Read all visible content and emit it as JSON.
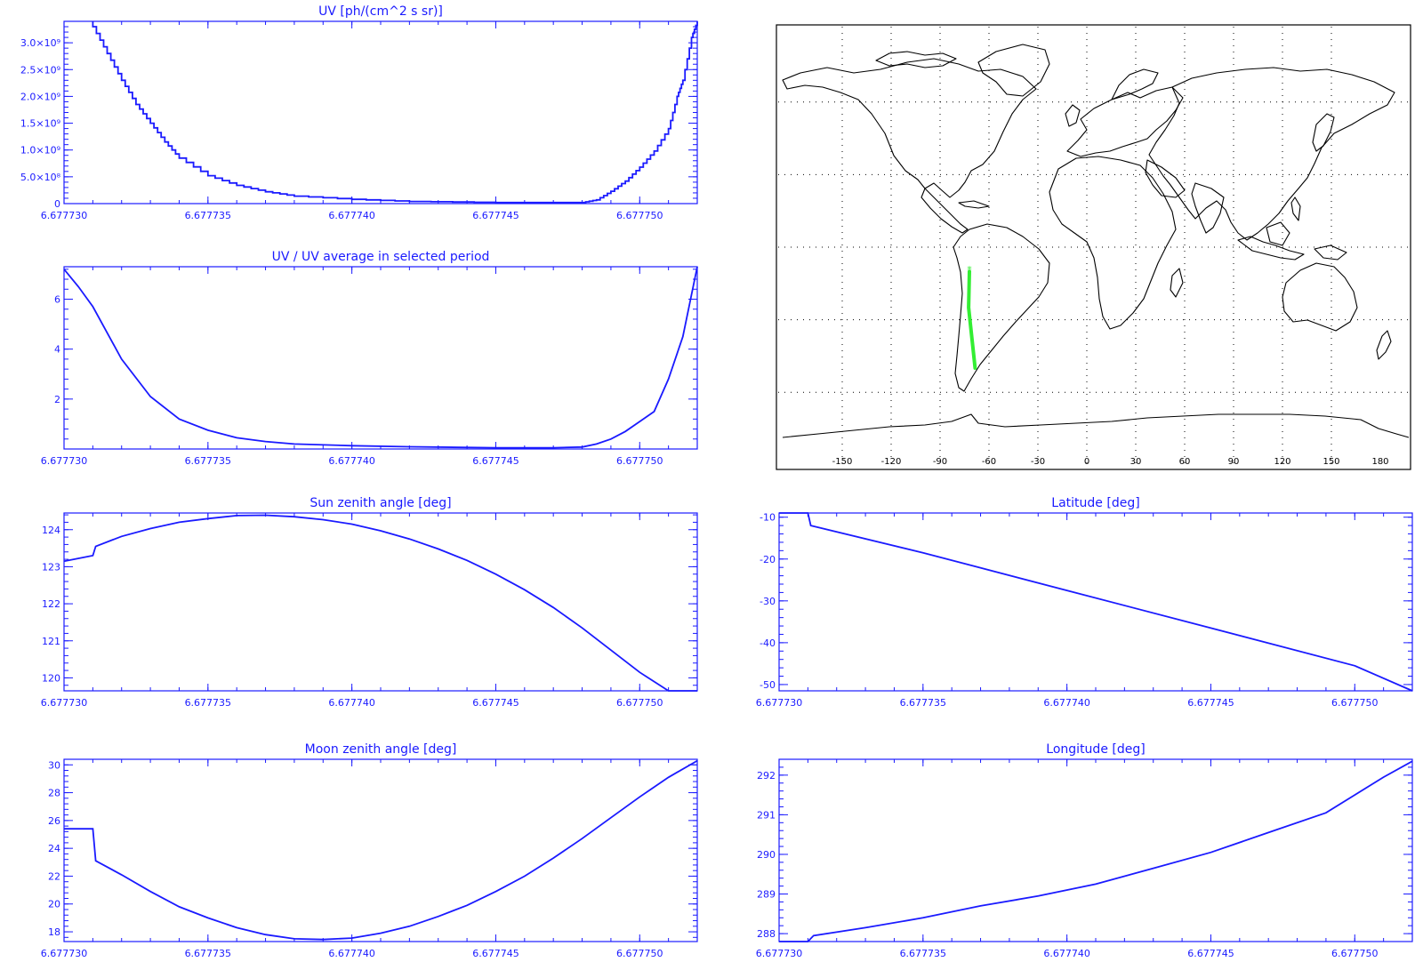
{
  "colors": {
    "axis": "#1a1aff",
    "line": "#1a1aff",
    "map_outline": "#000000",
    "grid_dots": "#000000",
    "track": "#33ee33"
  },
  "x_tick_labels": [
    "6.677730",
    "6.677735",
    "6.677740",
    "6.677745",
    "6.677750"
  ],
  "chart_data": [
    {
      "type": "line",
      "title": "UV [ph/(cm^2 s sr)]",
      "xlim": [
        6.67773,
        6.677752
      ],
      "ylim": [
        0,
        3400000000.0
      ],
      "x_ticks": [
        6.67773,
        6.677735,
        6.67774,
        6.677745,
        6.67775
      ],
      "y_ticks": [
        0,
        500000000.0,
        1000000000.0,
        1500000000.0,
        2000000000.0,
        2500000000.0,
        3000000000.0
      ],
      "y_tick_labels": [
        "0",
        "5.0×10⁸",
        "1.0×10⁹",
        "1.5×10⁹",
        "2.0×10⁹",
        "2.5×10⁹",
        "3.0×10⁹"
      ],
      "step": true,
      "series": [
        {
          "x": [
            6.677731,
            6.677731,
            6.6777315,
            6.677732,
            6.6777325,
            6.677733,
            6.6777335,
            6.677734,
            6.677735,
            6.677736,
            6.677737,
            6.677738,
            6.67774,
            6.677742,
            6.677745,
            6.677747,
            6.677748,
            6.6777485,
            6.677749,
            6.6777495,
            6.67775,
            6.6777505,
            6.677751,
            6.6777513,
            6.6777515,
            6.6777518,
            6.677752
          ],
          "y": [
            3400000000.0,
            3300000000.0,
            2800000000.0,
            2300000000.0,
            1850000000.0,
            1500000000.0,
            1150000000.0,
            850000000.0,
            520000000.0,
            340000000.0,
            220000000.0,
            140000000.0,
            80000000.0,
            40000000.0,
            20000000.0,
            20000000.0,
            20000000.0,
            70000000.0,
            230000000.0,
            420000000.0,
            680000000.0,
            980000000.0,
            1400000000.0,
            2000000000.0,
            2300000000.0,
            3100000000.0,
            3400000000.0
          ]
        }
      ]
    },
    {
      "type": "line",
      "title": "UV / UV average in selected period",
      "xlim": [
        6.67773,
        6.677752
      ],
      "ylim": [
        0,
        7.3
      ],
      "x_ticks": [
        6.67773,
        6.677735,
        6.67774,
        6.677745,
        6.67775
      ],
      "y_ticks": [
        2,
        4,
        6
      ],
      "y_tick_labels": [
        "2",
        "4",
        "6"
      ],
      "series": [
        {
          "x": [
            6.67773,
            6.6777305,
            6.677731,
            6.677732,
            6.677733,
            6.677734,
            6.677735,
            6.677736,
            6.677737,
            6.677738,
            6.67774,
            6.677742,
            6.677745,
            6.677747,
            6.677748,
            6.6777485,
            6.677749,
            6.6777495,
            6.67775,
            6.6777505,
            6.677751,
            6.6777515,
            6.677752
          ],
          "y": [
            7.2,
            6.5,
            5.7,
            3.6,
            2.1,
            1.2,
            0.75,
            0.45,
            0.3,
            0.2,
            0.13,
            0.09,
            0.05,
            0.05,
            0.08,
            0.2,
            0.4,
            0.7,
            1.1,
            1.5,
            2.8,
            4.5,
            7.3
          ]
        }
      ]
    },
    {
      "type": "line",
      "title": "Sun zenith angle [deg]",
      "xlim": [
        6.67773,
        6.677752
      ],
      "ylim": [
        119.65,
        124.45
      ],
      "x_ticks": [
        6.67773,
        6.677735,
        6.67774,
        6.677745,
        6.67775
      ],
      "y_ticks": [
        120,
        121,
        122,
        123,
        124
      ],
      "y_tick_labels": [
        "120",
        "121",
        "122",
        "123",
        "124"
      ],
      "series": [
        {
          "x": [
            6.67773,
            6.677731,
            6.6777311,
            6.677732,
            6.677733,
            6.677734,
            6.677735,
            6.677736,
            6.677737,
            6.677738,
            6.677739,
            6.67774,
            6.677741,
            6.677742,
            6.677743,
            6.677744,
            6.677745,
            6.677746,
            6.677747,
            6.677748,
            6.677749,
            6.67775,
            6.677751,
            6.677752
          ],
          "y": [
            123.15,
            123.3,
            123.55,
            123.82,
            124.03,
            124.2,
            124.3,
            124.38,
            124.39,
            124.35,
            124.27,
            124.15,
            123.97,
            123.75,
            123.48,
            123.17,
            122.8,
            122.38,
            121.9,
            121.35,
            120.75,
            120.15,
            119.65,
            119.2
          ]
        }
      ]
    },
    {
      "type": "line",
      "title": "Latitude [deg]",
      "xlim": [
        6.67773,
        6.677752
      ],
      "ylim": [
        -51.5,
        -9
      ],
      "x_ticks": [
        6.67773,
        6.677735,
        6.67774,
        6.677745,
        6.67775
      ],
      "y_ticks": [
        -10,
        -20,
        -30,
        -40,
        -50
      ],
      "y_tick_labels": [
        "-10",
        "-20",
        "-30",
        "-40",
        "-50"
      ],
      "series": [
        {
          "x": [
            6.67773,
            6.677731,
            6.6777311,
            6.677735,
            6.67774,
            6.677745,
            6.67775,
            6.677752
          ],
          "y": [
            -9,
            -9,
            -12,
            -18.5,
            -27.5,
            -36.5,
            -45.5,
            -51.5
          ]
        }
      ]
    },
    {
      "type": "line",
      "title": "Moon zenith angle [deg]",
      "xlim": [
        6.67773,
        6.677752
      ],
      "ylim": [
        17.3,
        30.4
      ],
      "x_ticks": [
        6.67773,
        6.677735,
        6.67774,
        6.677745,
        6.67775
      ],
      "y_ticks": [
        18,
        20,
        22,
        24,
        26,
        28,
        30
      ],
      "y_tick_labels": [
        "18",
        "20",
        "22",
        "24",
        "26",
        "28",
        "30"
      ],
      "series": [
        {
          "x": [
            6.67773,
            6.677731,
            6.6777311,
            6.677732,
            6.677733,
            6.677734,
            6.677735,
            6.677736,
            6.677737,
            6.677738,
            6.677739,
            6.67774,
            6.677741,
            6.677742,
            6.677743,
            6.677744,
            6.677745,
            6.677746,
            6.677747,
            6.677748,
            6.677749,
            6.67775,
            6.677751,
            6.677752
          ],
          "y": [
            25.4,
            25.4,
            23.1,
            22.1,
            20.9,
            19.8,
            19.0,
            18.3,
            17.8,
            17.5,
            17.45,
            17.55,
            17.9,
            18.4,
            19.1,
            19.9,
            20.9,
            22.0,
            23.3,
            24.7,
            26.2,
            27.7,
            29.1,
            30.3
          ]
        }
      ]
    },
    {
      "type": "line",
      "title": "Longitude [deg]",
      "xlim": [
        6.67773,
        6.677752
      ],
      "ylim": [
        287.8,
        292.4
      ],
      "x_ticks": [
        6.67773,
        6.677735,
        6.67774,
        6.677745,
        6.67775
      ],
      "y_ticks": [
        288,
        289,
        290,
        291,
        292
      ],
      "y_tick_labels": [
        "288",
        "289",
        "290",
        "291",
        "292"
      ],
      "series": [
        {
          "x": [
            6.67773,
            6.677731,
            6.6777312,
            6.677733,
            6.677735,
            6.677737,
            6.677739,
            6.677741,
            6.677743,
            6.677745,
            6.677747,
            6.677749,
            6.67775,
            6.677751,
            6.677752
          ],
          "y": [
            287.75,
            287.75,
            287.95,
            288.15,
            288.4,
            288.7,
            288.95,
            289.25,
            289.65,
            290.05,
            290.55,
            291.05,
            291.5,
            291.95,
            292.35
          ]
        }
      ]
    }
  ],
  "map": {
    "lon_ticks": [
      -150,
      -120,
      -90,
      -60,
      -30,
      0,
      30,
      60,
      90,
      120,
      150,
      180
    ],
    "lon_tick_labels": [
      "-150",
      "-120",
      "-90",
      "-60",
      "-30",
      "0",
      "30",
      "60",
      "90",
      "120",
      "150",
      "180"
    ],
    "grid_lon": [
      -150,
      -120,
      -90,
      -60,
      -30,
      0,
      30,
      60,
      90,
      120,
      150
    ],
    "grid_lat": [
      -60,
      -30,
      0,
      30,
      60
    ],
    "track": {
      "lon": [
        -72,
        -72.5,
        -68.5
      ],
      "lat": [
        -10,
        -25,
        -50
      ]
    }
  }
}
